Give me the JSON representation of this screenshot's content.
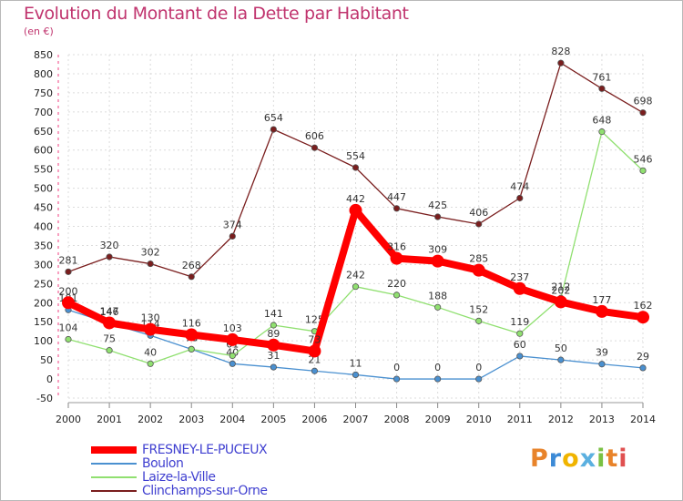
{
  "header": {
    "title": "Evolution du Montant de la Dette par Habitant",
    "unit": "(en €)"
  },
  "logo": {
    "text": "Proxiti",
    "colors": [
      "#e8832a",
      "#3c8ad6",
      "#f0b400",
      "#5bb0e0",
      "#7ac143",
      "#e8832a",
      "#e05050"
    ]
  },
  "chart_data": {
    "type": "line",
    "title": "Evolution du Montant de la Dette par Habitant",
    "subtitle": "(en €)",
    "xlabel": "",
    "ylabel": "",
    "x": [
      "2000",
      "2001",
      "2002",
      "2003",
      "2004",
      "2005",
      "2006",
      "2007",
      "2008",
      "2009",
      "2010",
      "2011",
      "2012",
      "2013",
      "2014"
    ],
    "ylim": [
      -50,
      850
    ],
    "yticks": [
      -50,
      0,
      50,
      100,
      150,
      200,
      250,
      300,
      350,
      400,
      450,
      500,
      550,
      600,
      650,
      700,
      750,
      800,
      850
    ],
    "grid": true,
    "legend_position": "bottom-left",
    "series": [
      {
        "name": "FRESNEY-LE-PUCEUX",
        "color": "#ff0000",
        "emphasis": true,
        "values": [
          200,
          147,
          130,
          116,
          103,
          89,
          73,
          442,
          316,
          309,
          285,
          237,
          202,
          177,
          162
        ]
      },
      {
        "name": "Boulon",
        "color": "#4a90d0",
        "emphasis": false,
        "values": [
          181,
          146,
          114,
          78,
          40,
          31,
          21,
          11,
          0,
          0,
          0,
          60,
          50,
          39,
          29
        ]
      },
      {
        "name": "Laize-la-Ville",
        "color": "#90e070",
        "emphasis": false,
        "values": [
          104,
          75,
          40,
          78,
          61,
          141,
          125,
          242,
          220,
          188,
          152,
          119,
          212,
          648,
          546
        ]
      },
      {
        "name": "Clinchamps-sur-Orne",
        "color": "#7a1e1e",
        "emphasis": false,
        "values": [
          281,
          320,
          302,
          268,
          374,
          654,
          606,
          554,
          447,
          425,
          406,
          474,
          828,
          761,
          698
        ]
      }
    ]
  }
}
